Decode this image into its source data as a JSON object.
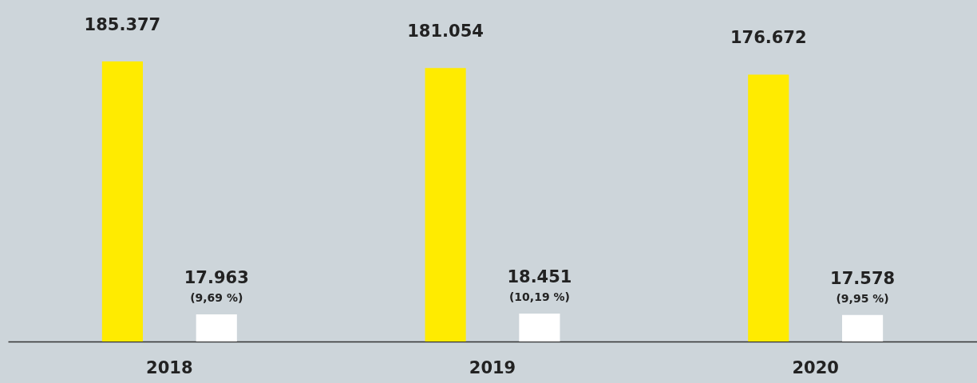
{
  "chart_data": {
    "type": "bar",
    "categories": [
      "2018",
      "2019",
      "2020"
    ],
    "series": [
      {
        "color": "#ffeb00",
        "values": [
          185377,
          181054,
          176672
        ],
        "value_labels": [
          "185.377",
          "181.054",
          "176.672"
        ]
      },
      {
        "color": "#ffffff",
        "values": [
          17963,
          18451,
          17578
        ],
        "value_labels": [
          "17.963",
          "18.451",
          "17.578"
        ]
      }
    ],
    "annotations": [
      "(9,69 %)",
      "(10,19 %)",
      "(9,95 %)"
    ],
    "grid": false
  }
}
